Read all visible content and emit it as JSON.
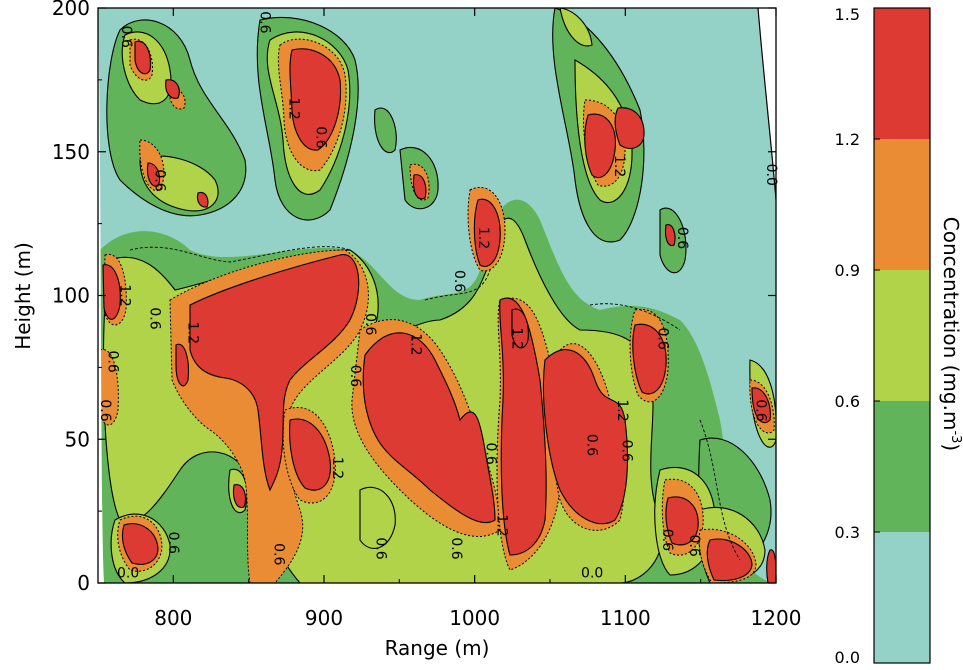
{
  "chart_data": {
    "type": "heatmap",
    "subtype": "filled-contour",
    "xlabel": "Range (m)",
    "ylabel": "Height (m)",
    "xlim": [
      750,
      1200
    ],
    "ylim": [
      0,
      200
    ],
    "x_ticks": [
      "800",
      "900",
      "1000",
      "1100",
      "1200"
    ],
    "y_ticks": [
      "0",
      "50",
      "100",
      "150",
      "200"
    ],
    "colorbar": {
      "label": "Concentration (mg.m",
      "label_sup": "-3",
      "label_close": ")",
      "ticks": [
        "0.0",
        "0.3",
        "0.6",
        "0.9",
        "1.2",
        "1.5"
      ],
      "levels": [
        0.0,
        0.3,
        0.6,
        0.9,
        1.2,
        1.5
      ],
      "colors": [
        "#94d2c8",
        "#62b45a",
        "#b0d34a",
        "#ea8c33",
        "#de3a34"
      ]
    },
    "contour_labels": [
      {
        "text": "0.6",
        "x": 766,
        "y": 190,
        "rot": 90
      },
      {
        "text": "0.6",
        "x": 858,
        "y": 195,
        "rot": 90
      },
      {
        "text": "1.2",
        "x": 877,
        "y": 165,
        "rot": 90
      },
      {
        "text": "0.6",
        "x": 895,
        "y": 155,
        "rot": 90
      },
      {
        "text": "0.6",
        "x": 788,
        "y": 140,
        "rot": 90
      },
      {
        "text": "0.6",
        "x": 987,
        "y": 105,
        "rot": 90
      },
      {
        "text": "1.2",
        "x": 1003,
        "y": 120,
        "rot": 90
      },
      {
        "text": "1.2",
        "x": 1093,
        "y": 145,
        "rot": 90
      },
      {
        "text": "0.6",
        "x": 1135,
        "y": 120,
        "rot": 90
      },
      {
        "text": "0.0",
        "x": 1194,
        "y": 142,
        "rot": 90
      },
      {
        "text": "1.2",
        "x": 765,
        "y": 100,
        "rot": 90
      },
      {
        "text": "0.6",
        "x": 785,
        "y": 92,
        "rot": 90
      },
      {
        "text": "1.2",
        "x": 810,
        "y": 87,
        "rot": 90
      },
      {
        "text": "0.6",
        "x": 928,
        "y": 90,
        "rot": 90
      },
      {
        "text": "1.2",
        "x": 958,
        "y": 83,
        "rot": 90
      },
      {
        "text": "1.2",
        "x": 1025,
        "y": 85,
        "rot": 90
      },
      {
        "text": "0.6",
        "x": 1122,
        "y": 85,
        "rot": 90
      },
      {
        "text": "1.2",
        "x": 1095,
        "y": 60,
        "rot": 90
      },
      {
        "text": "0.6",
        "x": 752,
        "y": 60,
        "rot": 90
      },
      {
        "text": "0.6",
        "x": 757,
        "y": 77,
        "rot": 90
      },
      {
        "text": "1.2",
        "x": 906,
        "y": 40,
        "rot": 90
      },
      {
        "text": "0.6",
        "x": 918,
        "y": 72,
        "rot": 90
      },
      {
        "text": "0.6",
        "x": 1008,
        "y": 45,
        "rot": 90
      },
      {
        "text": "0.6",
        "x": 1075,
        "y": 48,
        "rot": 90
      },
      {
        "text": "0.6",
        "x": 1098,
        "y": 46,
        "rot": 90
      },
      {
        "text": "1.2",
        "x": 1015,
        "y": 20,
        "rot": 90
      },
      {
        "text": "0.6",
        "x": 985,
        "y": 12,
        "rot": 90
      },
      {
        "text": "0.6",
        "x": 935,
        "y": 12,
        "rot": 90
      },
      {
        "text": "0.6",
        "x": 867,
        "y": 10,
        "rot": 90
      },
      {
        "text": "0.6",
        "x": 797,
        "y": 14,
        "rot": 90
      },
      {
        "text": "0.6",
        "x": 1143,
        "y": 13,
        "rot": 90
      },
      {
        "text": "0.6",
        "x": 1125,
        "y": 15,
        "rot": 90
      },
      {
        "text": "0.6",
        "x": 1187,
        "y": 60,
        "rot": 90
      },
      {
        "text": "0.0",
        "x": 770,
        "y": 2,
        "rot": 0
      },
      {
        "text": "0.0",
        "x": 1078,
        "y": 2,
        "rot": 0
      }
    ]
  }
}
